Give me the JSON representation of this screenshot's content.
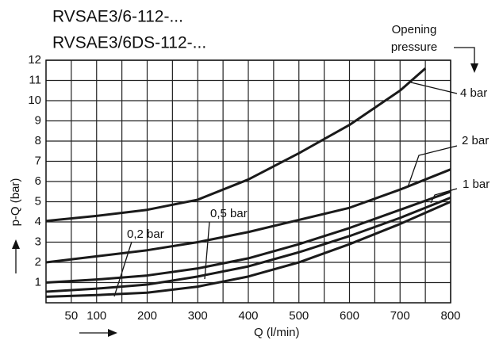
{
  "chart_data": {
    "type": "line",
    "title": [
      "RVSAE3/6-112-...",
      "RVSAE3/6DS-112-..."
    ],
    "legend_title": [
      "Opening",
      "pressure"
    ],
    "x_label": "Q (l/min)",
    "y_label": "p-Q (bar)",
    "x": [
      0,
      100,
      200,
      300,
      400,
      500,
      600,
      700,
      750,
      800
    ],
    "series": [
      {
        "name": "4 bar",
        "color": "#1a1a1a",
        "values": [
          4.05,
          4.3,
          4.6,
          5.1,
          6.1,
          7.4,
          8.8,
          10.5,
          11.6,
          null
        ]
      },
      {
        "name": "2 bar",
        "color": "#1a1a1a",
        "values": [
          2.0,
          2.3,
          2.6,
          3.0,
          3.5,
          4.1,
          4.7,
          5.6,
          6.1,
          6.6
        ]
      },
      {
        "name": "1 bar",
        "color": "#1a1a1a",
        "values": [
          1.0,
          1.15,
          1.35,
          1.7,
          2.2,
          2.9,
          3.7,
          4.6,
          5.05,
          5.5
        ]
      },
      {
        "name": "0,5 bar",
        "color": "#1a1a1a",
        "values": [
          0.55,
          0.7,
          0.9,
          1.3,
          1.8,
          2.5,
          3.3,
          4.2,
          4.7,
          5.2
        ]
      },
      {
        "name": "0,2 bar",
        "color": "#1a1a1a",
        "values": [
          0.3,
          0.38,
          0.5,
          0.8,
          1.3,
          2.0,
          2.9,
          3.9,
          4.45,
          5.0
        ]
      }
    ],
    "xlim": [
      0,
      800
    ],
    "ylim": [
      0,
      12
    ],
    "xticks": [
      50,
      100,
      200,
      300,
      400,
      500,
      600,
      700,
      800
    ],
    "xgrid": [
      50,
      100,
      150,
      200,
      250,
      300,
      350,
      400,
      450,
      500,
      550,
      600,
      650,
      700,
      750,
      800
    ],
    "yticks": [
      1,
      2,
      3,
      4,
      5,
      6,
      7,
      8,
      9,
      10,
      11,
      12
    ],
    "grid": true
  }
}
